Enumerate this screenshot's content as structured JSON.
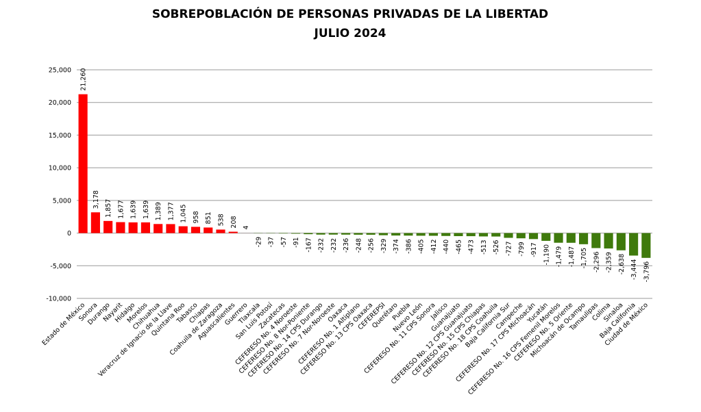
{
  "chart_data": {
    "type": "bar",
    "title": "SOBREPOBLACIÓN DE PERSONAS PRIVADAS DE LA LIBERTAD",
    "subtitle": "JULIO 2024",
    "categories": [
      "Estado de México",
      "Sonora",
      "Durango",
      "Nayarit",
      "Hidalgo",
      "Morelos",
      "Chihuahua",
      "Veracruz de Ignacio de la Llave",
      "Quintana Roo",
      "Tabasco",
      "Chiapas",
      "Coahuila de Zaragoza",
      "Aguascalientes",
      "Guerrero",
      "Tlaxcala",
      "San Luis Potosí",
      "Zacatecas",
      "CEFERESO No. 4 Noroeste",
      "CEFERESO No. 8 Nor-Poniente",
      "CEFERESO No. 14 CPS Durango",
      "CEFERESO No. 7 Nor-Noroeste",
      "Oaxaca",
      "CEFERESO No. 1 Altiplano",
      "CEFERESO No. 13 CPS Oaxaca",
      "CEFEREPSI",
      "Querétaro",
      "Puebla",
      "Nuevo León",
      "CEFERESO No. 11 CPS Sonora",
      "Jalisco",
      "Guanajuato",
      "CEFERESO No. 12 CPS Guanajuato",
      "CEFERESO No. 15 CPS Chiapas",
      "CEFERESO No. 18 CPS Coahuila",
      "Baja California Sur",
      "Campeche",
      "CEFERESO No. 17 CPS Michoacán",
      "Yucatán",
      "CEFERESO No. 16 CPS Femenil Morelos",
      "CEFERESO No. 5 Oriente",
      "Michoacán de Ocampo",
      "Tamaulipas",
      "Colima",
      "Sinaloa",
      "Baja California",
      "Ciudad de México"
    ],
    "values": [
      21260,
      3178,
      1857,
      1677,
      1639,
      1639,
      1389,
      1377,
      1045,
      958,
      851,
      538,
      208,
      4,
      -29,
      -37,
      -57,
      -91,
      -167,
      -232,
      -232,
      -236,
      -248,
      -256,
      -329,
      -374,
      -386,
      -405,
      -412,
      -440,
      -465,
      -473,
      -513,
      -526,
      -727,
      -799,
      -917,
      -1190,
      -1479,
      -1487,
      -1705,
      -2296,
      -2359,
      -2638,
      -3444,
      -3796
    ],
    "value_labels": [
      "21,260",
      "3,178",
      "1,857",
      "1,677",
      "1,639",
      "1,639",
      "1,389",
      "1,377",
      "1,045",
      "958",
      "851",
      "538",
      "208",
      "4",
      "-29",
      "-37",
      "-57",
      "-91",
      "-167",
      "-232",
      "-232",
      "-236",
      "-248",
      "-256",
      "-329",
      "-374",
      "-386",
      "-405",
      "-412",
      "-440",
      "-465",
      "-473",
      "-513",
      "-526",
      "-727",
      "-799",
      "-917",
      "-1,190",
      "-1,479",
      "-1,487",
      "-1,705",
      "-2,296",
      "-2,359",
      "-2,638",
      "-3,444",
      "-3,796"
    ],
    "colors": {
      "positive": "#ff0000",
      "negative": "#3f7a0c"
    },
    "ylim": [
      -10000,
      25000
    ],
    "yticks": [
      {
        "value": -10000,
        "label": "-10,000"
      },
      {
        "value": -5000,
        "label": "-5,000"
      },
      0,
      {
        "value": 5000,
        "label": "5,000"
      },
      {
        "value": 10000,
        "label": "10,000"
      },
      {
        "value": 15000,
        "label": "15,000"
      },
      {
        "value": 20000,
        "label": "20,000"
      },
      {
        "value": 25000,
        "label": "25,000"
      }
    ],
    "grid": true
  }
}
